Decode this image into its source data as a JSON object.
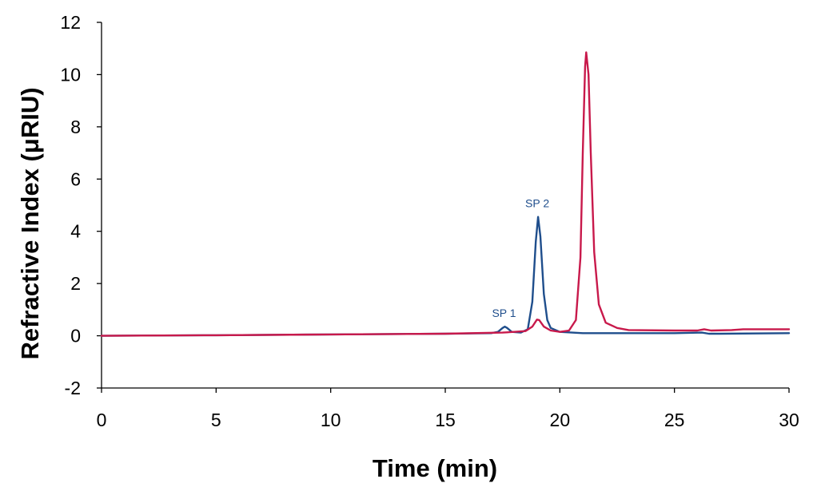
{
  "chart_data": {
    "type": "line",
    "xlabel": "Time (min)",
    "ylabel": "Refractive Index (μRIU)",
    "xlim": [
      0,
      30
    ],
    "ylim": [
      -2,
      12
    ],
    "xticks": [
      0,
      5,
      10,
      15,
      20,
      25,
      30
    ],
    "yticks": [
      -2,
      0,
      2,
      4,
      6,
      8,
      10,
      12
    ],
    "grid": false,
    "legend": "none",
    "series": [
      {
        "color": "#1f4e8c",
        "points": [
          [
            0,
            0.0
          ],
          [
            5,
            0.02
          ],
          [
            10,
            0.05
          ],
          [
            15,
            0.08
          ],
          [
            17.0,
            0.1
          ],
          [
            17.3,
            0.15
          ],
          [
            17.5,
            0.3
          ],
          [
            17.6,
            0.35
          ],
          [
            17.7,
            0.3
          ],
          [
            17.9,
            0.15
          ],
          [
            18.3,
            0.12
          ],
          [
            18.6,
            0.25
          ],
          [
            18.8,
            1.3
          ],
          [
            18.95,
            3.6
          ],
          [
            19.05,
            4.55
          ],
          [
            19.15,
            3.8
          ],
          [
            19.3,
            1.6
          ],
          [
            19.45,
            0.6
          ],
          [
            19.6,
            0.3
          ],
          [
            20.0,
            0.15
          ],
          [
            21.0,
            0.1
          ],
          [
            25,
            0.1
          ],
          [
            26.2,
            0.12
          ],
          [
            26.5,
            0.08
          ],
          [
            27,
            0.08
          ],
          [
            30,
            0.1
          ]
        ]
      },
      {
        "color": "#c8194b",
        "points": [
          [
            0,
            0.0
          ],
          [
            5,
            0.02
          ],
          [
            10,
            0.05
          ],
          [
            15,
            0.08
          ],
          [
            17.5,
            0.12
          ],
          [
            18.0,
            0.15
          ],
          [
            18.5,
            0.18
          ],
          [
            18.8,
            0.35
          ],
          [
            19.0,
            0.62
          ],
          [
            19.1,
            0.6
          ],
          [
            19.3,
            0.35
          ],
          [
            19.6,
            0.2
          ],
          [
            20.0,
            0.15
          ],
          [
            20.4,
            0.2
          ],
          [
            20.7,
            0.6
          ],
          [
            20.9,
            3.0
          ],
          [
            21.0,
            7.0
          ],
          [
            21.1,
            10.3
          ],
          [
            21.15,
            10.85
          ],
          [
            21.25,
            10.0
          ],
          [
            21.35,
            7.0
          ],
          [
            21.5,
            3.2
          ],
          [
            21.7,
            1.2
          ],
          [
            22.0,
            0.5
          ],
          [
            22.5,
            0.3
          ],
          [
            23.0,
            0.22
          ],
          [
            25.0,
            0.2
          ],
          [
            26.0,
            0.2
          ],
          [
            26.3,
            0.25
          ],
          [
            26.6,
            0.2
          ],
          [
            27.5,
            0.22
          ],
          [
            28.0,
            0.25
          ],
          [
            30,
            0.25
          ]
        ]
      }
    ],
    "annotations": [
      {
        "text": "SP 1",
        "x": 17.6,
        "y": 0.35
      },
      {
        "text": "SP 2",
        "x": 19.05,
        "y": 4.55
      }
    ]
  }
}
